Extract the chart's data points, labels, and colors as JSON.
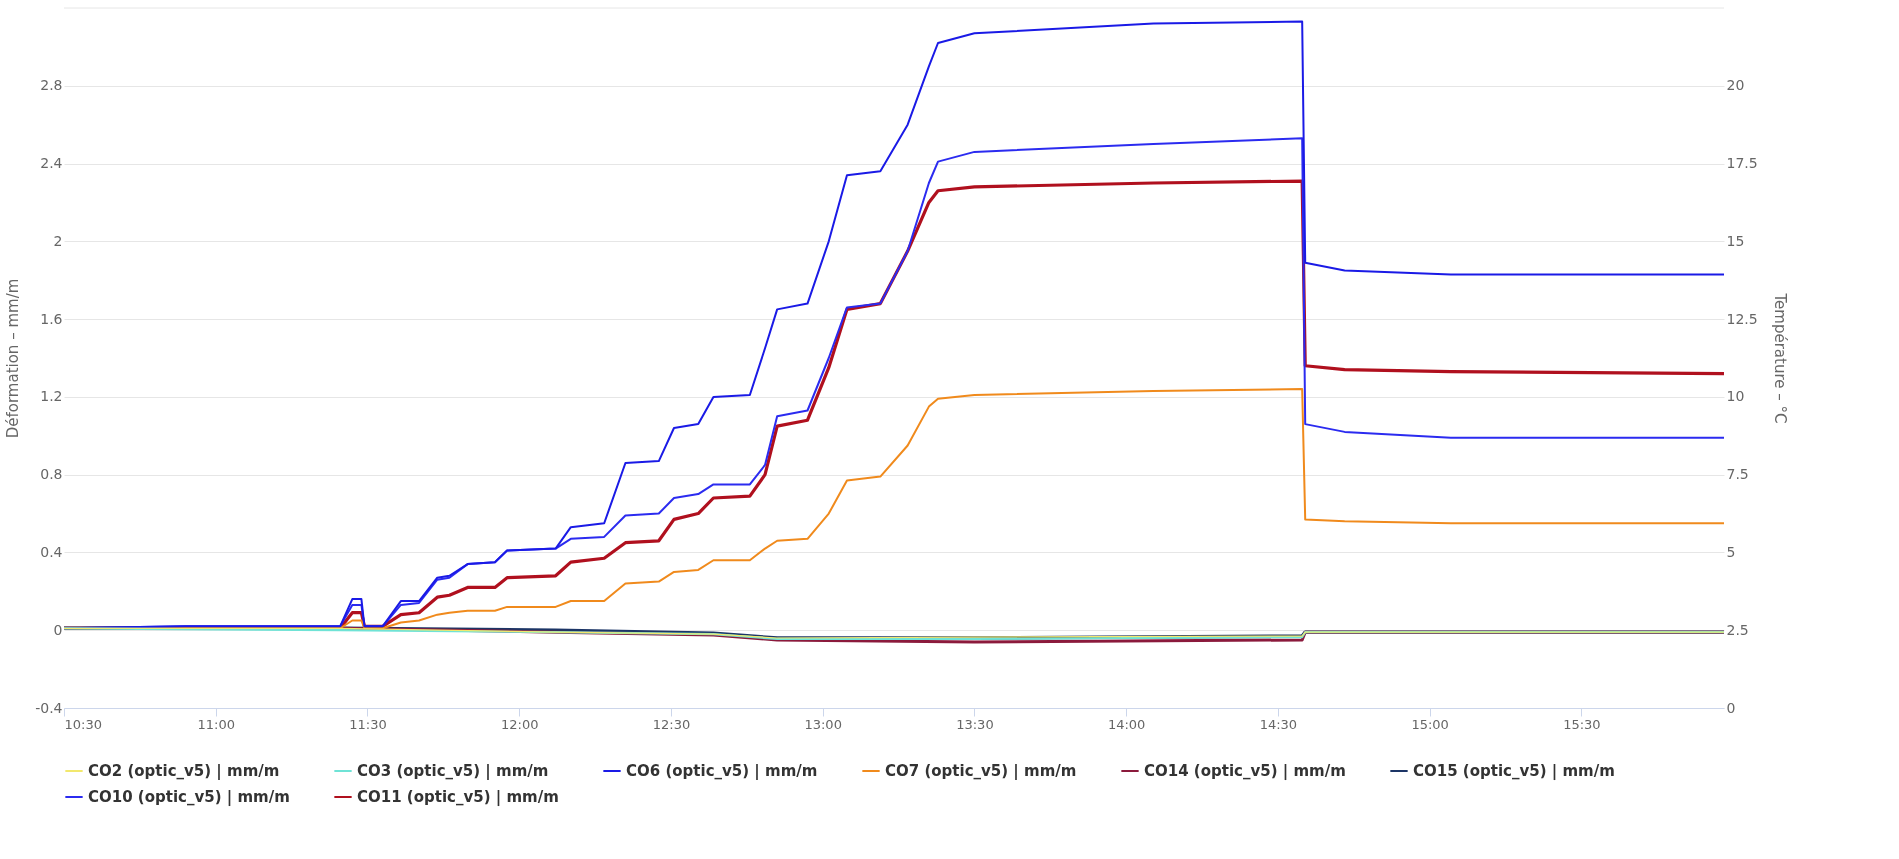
{
  "chart_data": {
    "type": "line",
    "ylabel": "Déformation – mm/m",
    "y2label": "Température – °C",
    "xlim": [
      10.5,
      15.97
    ],
    "xticks": [
      {
        "value": 10.5,
        "label": "10:30"
      },
      {
        "value": 11.0,
        "label": "11:00"
      },
      {
        "value": 11.5,
        "label": "11:30"
      },
      {
        "value": 12.0,
        "label": "12:00"
      },
      {
        "value": 12.5,
        "label": "12:30"
      },
      {
        "value": 13.0,
        "label": "13:00"
      },
      {
        "value": 13.5,
        "label": "13:30"
      },
      {
        "value": 14.0,
        "label": "14:00"
      },
      {
        "value": 14.5,
        "label": "14:30"
      },
      {
        "value": 15.0,
        "label": "15:00"
      },
      {
        "value": 15.5,
        "label": "15:30"
      }
    ],
    "ylim": [
      -0.4,
      3.2
    ],
    "yticks": [
      -0.4,
      0,
      0.4,
      0.8,
      1.2,
      1.6,
      2,
      2.4,
      2.8
    ],
    "y2lim": [
      0,
      22.5
    ],
    "y2ticks": [
      0,
      2.5,
      5,
      7.5,
      10,
      12.5,
      15,
      17.5,
      20
    ],
    "grid": "y",
    "legend": "bottom",
    "marker": "none",
    "line_style": "solid",
    "x": [
      10.5,
      10.9,
      11.41,
      11.45,
      11.48,
      11.49,
      11.55,
      11.61,
      11.67,
      11.73,
      11.77,
      11.83,
      11.92,
      11.96,
      12.12,
      12.17,
      12.28,
      12.35,
      12.46,
      12.51,
      12.59,
      12.64,
      12.76,
      12.81,
      12.85,
      12.95,
      13.02,
      13.08,
      13.19,
      13.28,
      13.35,
      13.38,
      13.5,
      14.09,
      14.58,
      14.59,
      14.72,
      15.07,
      15.97
    ],
    "series": [
      {
        "name": "CO2 (optic_v5) | mm/m",
        "color": "#f2e86d",
        "x": [
          10.5,
          11.41,
          12.12,
          12.64,
          12.85,
          13.5,
          14.58,
          14.59,
          15.97
        ],
        "values": [
          0.01,
          0.01,
          -0.01,
          -0.02,
          -0.04,
          -0.035,
          -0.03,
          -0.01,
          -0.01
        ]
      },
      {
        "name": "CO3 (optic_v5) | mm/m",
        "color": "#6fe3d6",
        "x": [
          10.5,
          11.41,
          12.12,
          12.64,
          12.85,
          13.5,
          14.58,
          14.59,
          15.97
        ],
        "values": [
          0.01,
          0.0,
          -0.01,
          -0.02,
          -0.045,
          -0.045,
          -0.035,
          -0.01,
          -0.01
        ]
      },
      {
        "name": "CO6 (optic_v5) | mm/m",
        "color": "#1a1ae6",
        "values": [
          0.01,
          0.02,
          0.02,
          0.16,
          0.16,
          0.02,
          0.02,
          0.15,
          0.15,
          0.27,
          0.28,
          0.34,
          0.35,
          0.41,
          0.42,
          0.53,
          0.55,
          0.86,
          0.87,
          1.04,
          1.06,
          1.2,
          1.21,
          1.45,
          1.65,
          1.68,
          2.0,
          2.34,
          2.36,
          2.6,
          2.9,
          3.02,
          3.07,
          3.12,
          3.13,
          1.89,
          1.85,
          1.83,
          1.83
        ]
      },
      {
        "name": "CO7 (optic_v5) | mm/m",
        "color": "#f08a1c",
        "values": [
          0.01,
          0.01,
          0.01,
          0.05,
          0.05,
          0.01,
          0.01,
          0.04,
          0.05,
          0.08,
          0.09,
          0.1,
          0.1,
          0.12,
          0.12,
          0.15,
          0.15,
          0.24,
          0.25,
          0.3,
          0.31,
          0.36,
          0.36,
          0.42,
          0.46,
          0.47,
          0.6,
          0.77,
          0.79,
          0.95,
          1.15,
          1.19,
          1.21,
          1.23,
          1.24,
          0.57,
          0.56,
          0.55,
          0.55
        ]
      },
      {
        "name": "CO14 (optic_v5) | mm/m",
        "color": "#8b1a3c",
        "x": [
          10.5,
          11.41,
          12.12,
          12.64,
          12.85,
          13.5,
          14.58,
          14.59,
          15.97
        ],
        "values": [
          0.01,
          0.01,
          -0.01,
          -0.025,
          -0.05,
          -0.06,
          -0.05,
          -0.01,
          -0.01
        ]
      },
      {
        "name": "CO15 (optic_v5) | mm/m",
        "color": "#1c3566",
        "x": [
          10.5,
          11.41,
          12.12,
          12.64,
          12.85,
          13.5,
          14.58,
          14.59,
          15.97
        ],
        "values": [
          0.01,
          0.01,
          0.0,
          -0.015,
          -0.04,
          -0.04,
          -0.03,
          -0.01,
          -0.01
        ]
      },
      {
        "name": "CO10 (optic_v5) | mm/m",
        "color": "#2b2bf0",
        "values": [
          0.01,
          0.02,
          0.02,
          0.13,
          0.13,
          0.02,
          0.02,
          0.13,
          0.14,
          0.26,
          0.27,
          0.34,
          0.35,
          0.41,
          0.42,
          0.47,
          0.48,
          0.59,
          0.6,
          0.68,
          0.7,
          0.75,
          0.75,
          0.85,
          1.1,
          1.13,
          1.4,
          1.66,
          1.68,
          1.95,
          2.3,
          2.41,
          2.46,
          2.5,
          2.53,
          1.06,
          1.02,
          0.99,
          0.99
        ]
      },
      {
        "name": "CO11 (optic_v5) | mm/m",
        "color": "#b0101e",
        "values": [
          0.01,
          0.01,
          0.01,
          0.09,
          0.09,
          0.02,
          0.02,
          0.08,
          0.09,
          0.17,
          0.18,
          0.22,
          0.22,
          0.27,
          0.28,
          0.35,
          0.37,
          0.45,
          0.46,
          0.57,
          0.6,
          0.68,
          0.69,
          0.8,
          1.05,
          1.08,
          1.35,
          1.65,
          1.68,
          1.95,
          2.2,
          2.26,
          2.28,
          2.3,
          2.31,
          1.36,
          1.34,
          1.33,
          1.32
        ]
      }
    ]
  }
}
